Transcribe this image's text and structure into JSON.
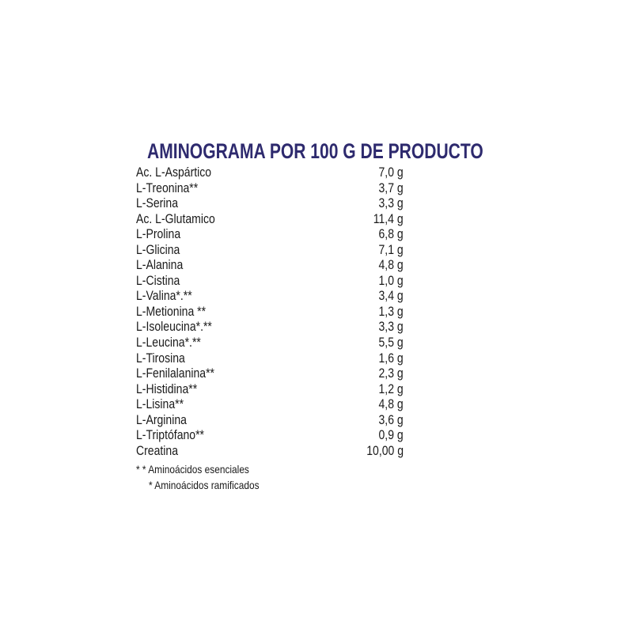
{
  "title": "AMINOGRAMA POR 100 G DE PRODUCTO",
  "rows": [
    {
      "name": "Ac. L-Aspártico",
      "value": "7,0 g"
    },
    {
      "name": "L-Treonina**",
      "value": "3,7 g"
    },
    {
      "name": "L-Serina",
      "value": "3,3 g"
    },
    {
      "name": "Ac. L-Glutamico",
      "value": "11,4 g"
    },
    {
      "name": "L-Prolina",
      "value": "6,8 g"
    },
    {
      "name": "L-Glicina",
      "value": "7,1 g"
    },
    {
      "name": "L-Alanina",
      "value": "4,8 g"
    },
    {
      "name": "L-Cistina",
      "value": "1,0 g"
    },
    {
      "name": "L-Valina*.**",
      "value": "3,4 g"
    },
    {
      "name": "L-Metionina **",
      "value": "1,3 g"
    },
    {
      "name": "L-Isoleucina*.**",
      "value": "3,3 g"
    },
    {
      "name": "L-Leucina*.**",
      "value": "5,5 g"
    },
    {
      "name": "L-Tirosina",
      "value": "1,6 g"
    },
    {
      "name": "L-Fenilalanina**",
      "value": "2,3 g"
    },
    {
      "name": "L-Histidina**",
      "value": "1,2 g"
    },
    {
      "name": "L-Lisina**",
      "value": "4,8 g"
    },
    {
      "name": "L-Arginina",
      "value": "3,6 g"
    },
    {
      "name": "L-Triptófano**",
      "value": "0,9 g"
    },
    {
      "name": "Creatina",
      "value": "10,00 g"
    }
  ],
  "notes": [
    "* * Aminoácidos esenciales",
    "* Aminoácidos ramificados"
  ],
  "colors": {
    "title": "#2e2a6e",
    "text": "#1a1a1a"
  }
}
